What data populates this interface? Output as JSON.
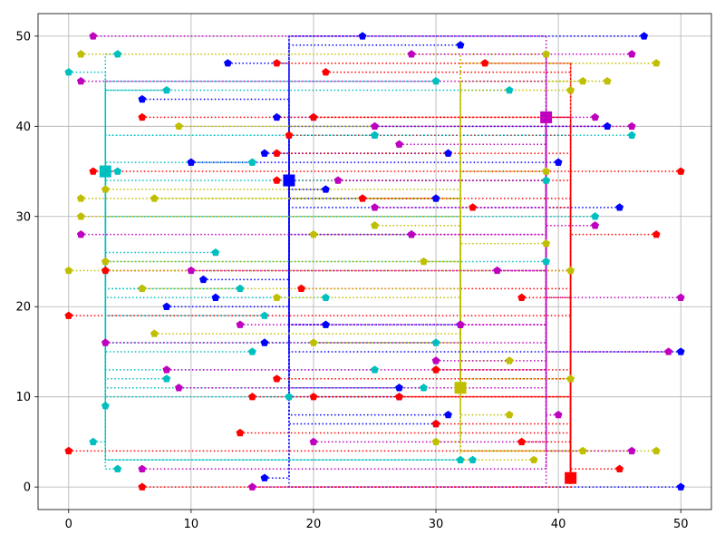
{
  "chart_data": {
    "type": "scatter",
    "title": "",
    "xlabel": "",
    "ylabel": "",
    "xlim": [
      -2.5,
      52.5
    ],
    "ylim": [
      -2.5,
      52.5
    ],
    "xticks": [
      0,
      10,
      20,
      30,
      40,
      50
    ],
    "yticks": [
      0,
      10,
      20,
      30,
      40,
      50
    ],
    "grid": true,
    "legend": "none",
    "series": [
      {
        "color": "#0000ff",
        "hub": [
          18,
          34
        ],
        "points": [
          [
            16,
            1
          ],
          [
            50,
            0
          ],
          [
            31,
            8
          ],
          [
            27,
            11
          ],
          [
            50,
            15
          ],
          [
            16,
            16
          ],
          [
            21,
            18
          ],
          [
            32,
            18
          ],
          [
            8,
            20
          ],
          [
            12,
            21
          ],
          [
            11,
            23
          ],
          [
            28,
            28
          ],
          [
            45,
            31
          ],
          [
            30,
            32
          ],
          [
            21,
            33
          ],
          [
            40,
            36
          ],
          [
            10,
            36
          ],
          [
            16,
            37
          ],
          [
            31,
            37
          ],
          [
            25,
            39
          ],
          [
            20,
            41
          ],
          [
            17,
            41
          ],
          [
            44,
            40
          ],
          [
            6,
            43
          ],
          [
            13,
            47
          ],
          [
            32,
            49
          ],
          [
            24,
            50
          ],
          [
            47,
            50
          ],
          [
            27,
            10
          ],
          [
            30,
            7
          ]
        ]
      },
      {
        "color": "#ff0000",
        "hub": [
          41,
          1
        ],
        "points": [
          [
            6,
            0
          ],
          [
            45,
            2
          ],
          [
            0,
            4
          ],
          [
            37,
            5
          ],
          [
            14,
            6
          ],
          [
            30,
            7
          ],
          [
            15,
            10
          ],
          [
            20,
            10
          ],
          [
            27,
            10
          ],
          [
            30,
            13
          ],
          [
            17,
            12
          ],
          [
            0,
            19
          ],
          [
            19,
            22
          ],
          [
            37,
            21
          ],
          [
            3,
            24
          ],
          [
            48,
            28
          ],
          [
            33,
            31
          ],
          [
            24,
            32
          ],
          [
            50,
            35
          ],
          [
            2,
            35
          ],
          [
            17,
            34
          ],
          [
            17,
            37
          ],
          [
            6,
            41
          ],
          [
            20,
            41
          ],
          [
            21,
            46
          ],
          [
            34,
            47
          ],
          [
            17,
            47
          ],
          [
            18,
            39
          ]
        ]
      },
      {
        "color": "#00bfbf",
        "hub": [
          3,
          35
        ],
        "points": [
          [
            3,
            9
          ],
          [
            2,
            5
          ],
          [
            4,
            2
          ],
          [
            32,
            3
          ],
          [
            33,
            3
          ],
          [
            18,
            10
          ],
          [
            29,
            11
          ],
          [
            25,
            13
          ],
          [
            8,
            12
          ],
          [
            15,
            15
          ],
          [
            30,
            16
          ],
          [
            16,
            19
          ],
          [
            21,
            21
          ],
          [
            14,
            22
          ],
          [
            6,
            22
          ],
          [
            39,
            25
          ],
          [
            12,
            26
          ],
          [
            43,
            30
          ],
          [
            39,
            34
          ],
          [
            15,
            36
          ],
          [
            4,
            35
          ],
          [
            25,
            39
          ],
          [
            46,
            39
          ],
          [
            8,
            44
          ],
          [
            36,
            44
          ],
          [
            30,
            45
          ],
          [
            0,
            46
          ],
          [
            4,
            48
          ]
        ]
      },
      {
        "color": "#bfbf00",
        "hub": [
          32,
          11
        ],
        "points": [
          [
            38,
            3
          ],
          [
            48,
            4
          ],
          [
            42,
            4
          ],
          [
            30,
            5
          ],
          [
            36,
            8
          ],
          [
            41,
            12
          ],
          [
            36,
            14
          ],
          [
            20,
            16
          ],
          [
            7,
            17
          ],
          [
            17,
            21
          ],
          [
            6,
            22
          ],
          [
            3,
            25
          ],
          [
            29,
            25
          ],
          [
            41,
            24
          ],
          [
            0,
            24
          ],
          [
            20,
            28
          ],
          [
            39,
            27
          ],
          [
            25,
            29
          ],
          [
            1,
            30
          ],
          [
            1,
            32
          ],
          [
            7,
            32
          ],
          [
            3,
            33
          ],
          [
            39,
            35
          ],
          [
            9,
            40
          ],
          [
            41,
            44
          ],
          [
            42,
            45
          ],
          [
            44,
            45
          ],
          [
            48,
            47
          ],
          [
            1,
            48
          ],
          [
            39,
            48
          ]
        ]
      },
      {
        "color": "#bf00bf",
        "hub": [
          39,
          41
        ],
        "points": [
          [
            15,
            0
          ],
          [
            6,
            2
          ],
          [
            46,
            4
          ],
          [
            20,
            5
          ],
          [
            40,
            8
          ],
          [
            9,
            11
          ],
          [
            8,
            13
          ],
          [
            30,
            14
          ],
          [
            49,
            15
          ],
          [
            3,
            16
          ],
          [
            14,
            18
          ],
          [
            32,
            18
          ],
          [
            50,
            21
          ],
          [
            10,
            24
          ],
          [
            35,
            24
          ],
          [
            1,
            28
          ],
          [
            28,
            28
          ],
          [
            43,
            29
          ],
          [
            25,
            31
          ],
          [
            22,
            34
          ],
          [
            27,
            38
          ],
          [
            25,
            40
          ],
          [
            46,
            40
          ],
          [
            43,
            41
          ],
          [
            1,
            45
          ],
          [
            28,
            48
          ],
          [
            46,
            48
          ],
          [
            2,
            50
          ]
        ]
      }
    ]
  }
}
